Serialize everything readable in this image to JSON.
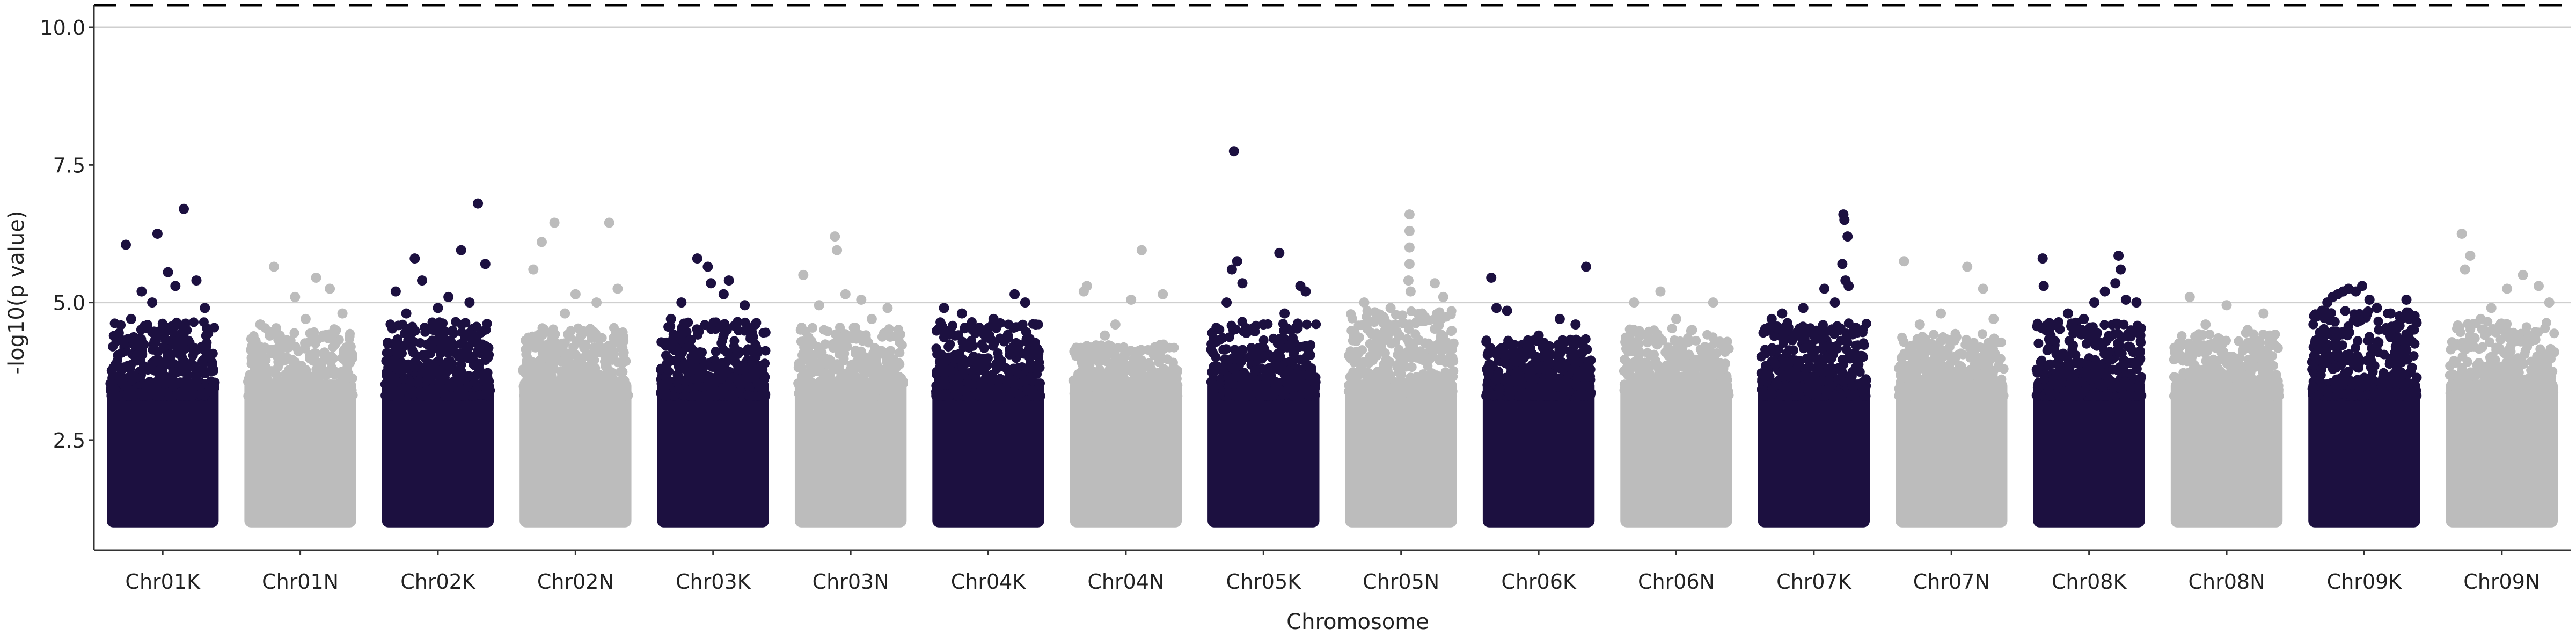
{
  "chart_data": {
    "type": "scatter",
    "title": "",
    "xlabel": "Chromosome",
    "ylabel": "-log10(p value)",
    "ylim": [
      0.5,
      10.4
    ],
    "yticks": [
      2.5,
      5.0,
      7.5,
      10.0
    ],
    "ytick_labels": [
      "2.5",
      "5.0",
      "7.5",
      "10.0"
    ],
    "threshold_lines": [
      {
        "value": 10.4,
        "style": "dashed",
        "color": "#000000"
      },
      {
        "value": 10.0,
        "style": "solid",
        "color": "#cfcfcf"
      },
      {
        "value": 5.0,
        "style": "solid",
        "color": "#cfcfcf"
      }
    ],
    "grid": "horizontal at threshold lines only",
    "legend": "none",
    "colors": {
      "dark": "#1c1040",
      "light": "#bcbcbc"
    },
    "categories": [
      "Chr01K",
      "Chr01N",
      "Chr02K",
      "Chr02N",
      "Chr03K",
      "Chr03N",
      "Chr04K",
      "Chr04N",
      "Chr05K",
      "Chr05N",
      "Chr06K",
      "Chr06N",
      "Chr07K",
      "Chr07N",
      "Chr08K",
      "Chr08N",
      "Chr09K",
      "Chr09N"
    ],
    "chromosomes": [
      {
        "name": "Chr01K",
        "color": "dark",
        "base_max": 4.0,
        "top_hits": [
          {
            "pos": 0.15,
            "y": 6.05
          },
          {
            "pos": 0.45,
            "y": 6.25
          },
          {
            "pos": 0.7,
            "y": 6.7
          },
          {
            "pos": 0.82,
            "y": 5.4
          },
          {
            "pos": 0.3,
            "y": 5.2
          },
          {
            "pos": 0.55,
            "y": 5.55
          },
          {
            "pos": 0.4,
            "y": 5.0
          },
          {
            "pos": 0.9,
            "y": 4.9
          },
          {
            "pos": 0.2,
            "y": 4.7
          },
          {
            "pos": 0.62,
            "y": 5.3
          }
        ]
      },
      {
        "name": "Chr01N",
        "color": "light",
        "base_max": 3.9,
        "top_hits": [
          {
            "pos": 0.25,
            "y": 5.65
          },
          {
            "pos": 0.65,
            "y": 5.45
          },
          {
            "pos": 0.45,
            "y": 5.1
          },
          {
            "pos": 0.78,
            "y": 5.25
          },
          {
            "pos": 0.12,
            "y": 4.6
          },
          {
            "pos": 0.9,
            "y": 4.8
          },
          {
            "pos": 0.55,
            "y": 4.7
          }
        ]
      },
      {
        "name": "Chr02K",
        "color": "dark",
        "base_max": 4.0,
        "top_hits": [
          {
            "pos": 0.28,
            "y": 5.8
          },
          {
            "pos": 0.72,
            "y": 5.95
          },
          {
            "pos": 0.88,
            "y": 6.8
          },
          {
            "pos": 0.95,
            "y": 5.7
          },
          {
            "pos": 0.1,
            "y": 5.2
          },
          {
            "pos": 0.35,
            "y": 5.4
          },
          {
            "pos": 0.6,
            "y": 5.1
          },
          {
            "pos": 0.8,
            "y": 5.0
          },
          {
            "pos": 0.5,
            "y": 4.9
          },
          {
            "pos": 0.2,
            "y": 4.8
          }
        ]
      },
      {
        "name": "Chr02N",
        "color": "light",
        "base_max": 3.9,
        "top_hits": [
          {
            "pos": 0.18,
            "y": 6.1
          },
          {
            "pos": 0.3,
            "y": 6.45
          },
          {
            "pos": 0.82,
            "y": 6.45
          },
          {
            "pos": 0.1,
            "y": 5.6
          },
          {
            "pos": 0.5,
            "y": 5.15
          },
          {
            "pos": 0.7,
            "y": 5.0
          },
          {
            "pos": 0.9,
            "y": 5.25
          },
          {
            "pos": 0.4,
            "y": 4.8
          }
        ]
      },
      {
        "name": "Chr03K",
        "color": "dark",
        "base_max": 4.0,
        "top_hits": [
          {
            "pos": 0.35,
            "y": 5.8
          },
          {
            "pos": 0.45,
            "y": 5.65
          },
          {
            "pos": 0.48,
            "y": 5.35
          },
          {
            "pos": 0.6,
            "y": 5.15
          },
          {
            "pos": 0.2,
            "y": 5.0
          },
          {
            "pos": 0.8,
            "y": 4.95
          },
          {
            "pos": 0.1,
            "y": 4.7
          },
          {
            "pos": 0.65,
            "y": 5.4
          },
          {
            "pos": 0.9,
            "y": 4.6
          }
        ]
      },
      {
        "name": "Chr03N",
        "color": "light",
        "base_max": 3.9,
        "top_hits": [
          {
            "pos": 0.05,
            "y": 5.5
          },
          {
            "pos": 0.35,
            "y": 6.2
          },
          {
            "pos": 0.37,
            "y": 5.95
          },
          {
            "pos": 0.45,
            "y": 5.15
          },
          {
            "pos": 0.2,
            "y": 4.95
          },
          {
            "pos": 0.6,
            "y": 5.05
          },
          {
            "pos": 0.85,
            "y": 4.9
          },
          {
            "pos": 0.7,
            "y": 4.7
          }
        ]
      },
      {
        "name": "Chr04K",
        "color": "dark",
        "base_max": 4.0,
        "top_hits": [
          {
            "pos": 0.08,
            "y": 4.9
          },
          {
            "pos": 0.25,
            "y": 4.8
          },
          {
            "pos": 0.75,
            "y": 5.15
          },
          {
            "pos": 0.85,
            "y": 5.0
          },
          {
            "pos": 0.55,
            "y": 4.7
          },
          {
            "pos": 0.4,
            "y": 4.5
          },
          {
            "pos": 0.95,
            "y": 4.6
          }
        ]
      },
      {
        "name": "Chr04N",
        "color": "light",
        "base_max": 3.6,
        "top_hits": [
          {
            "pos": 0.1,
            "y": 5.2
          },
          {
            "pos": 0.13,
            "y": 5.3
          },
          {
            "pos": 0.65,
            "y": 5.95
          },
          {
            "pos": 0.55,
            "y": 5.05
          },
          {
            "pos": 0.85,
            "y": 5.15
          },
          {
            "pos": 0.4,
            "y": 4.6
          },
          {
            "pos": 0.3,
            "y": 4.4
          }
        ]
      },
      {
        "name": "Chr05K",
        "color": "dark",
        "base_max": 4.0,
        "top_hits": [
          {
            "pos": 0.22,
            "y": 7.75
          },
          {
            "pos": 0.25,
            "y": 5.75
          },
          {
            "pos": 0.65,
            "y": 5.9
          },
          {
            "pos": 0.2,
            "y": 5.6
          },
          {
            "pos": 0.85,
            "y": 5.3
          },
          {
            "pos": 0.9,
            "y": 5.2
          },
          {
            "pos": 0.15,
            "y": 5.0
          },
          {
            "pos": 0.7,
            "y": 4.8
          },
          {
            "pos": 0.5,
            "y": 4.6
          },
          {
            "pos": 0.3,
            "y": 5.35
          }
        ]
      },
      {
        "name": "Chr05N",
        "color": "light",
        "base_max": 4.2,
        "top_hits": [
          {
            "pos": 0.58,
            "y": 6.6
          },
          {
            "pos": 0.58,
            "y": 6.3
          },
          {
            "pos": 0.58,
            "y": 6.0
          },
          {
            "pos": 0.58,
            "y": 5.7
          },
          {
            "pos": 0.57,
            "y": 5.4
          },
          {
            "pos": 0.59,
            "y": 5.2
          },
          {
            "pos": 0.82,
            "y": 5.35
          },
          {
            "pos": 0.15,
            "y": 5.0
          },
          {
            "pos": 0.4,
            "y": 4.9
          },
          {
            "pos": 0.9,
            "y": 5.1
          },
          {
            "pos": 0.7,
            "y": 4.8
          }
        ]
      },
      {
        "name": "Chr06K",
        "color": "dark",
        "base_max": 3.7,
        "top_hits": [
          {
            "pos": 0.05,
            "y": 5.45
          },
          {
            "pos": 0.95,
            "y": 5.65
          },
          {
            "pos": 0.1,
            "y": 4.9
          },
          {
            "pos": 0.2,
            "y": 4.85
          },
          {
            "pos": 0.7,
            "y": 4.7
          },
          {
            "pos": 0.85,
            "y": 4.6
          },
          {
            "pos": 0.5,
            "y": 4.4
          }
        ]
      },
      {
        "name": "Chr06N",
        "color": "light",
        "base_max": 3.9,
        "top_hits": [
          {
            "pos": 0.1,
            "y": 5.0
          },
          {
            "pos": 0.35,
            "y": 5.2
          },
          {
            "pos": 0.85,
            "y": 5.0
          },
          {
            "pos": 0.5,
            "y": 4.7
          },
          {
            "pos": 0.65,
            "y": 4.5
          }
        ]
      },
      {
        "name": "Chr07K",
        "color": "dark",
        "base_max": 4.0,
        "top_hits": [
          {
            "pos": 0.78,
            "y": 6.6
          },
          {
            "pos": 0.79,
            "y": 6.5
          },
          {
            "pos": 0.82,
            "y": 6.2
          },
          {
            "pos": 0.77,
            "y": 5.7
          },
          {
            "pos": 0.8,
            "y": 5.4
          },
          {
            "pos": 0.83,
            "y": 5.3
          },
          {
            "pos": 0.6,
            "y": 5.25
          },
          {
            "pos": 0.4,
            "y": 4.9
          },
          {
            "pos": 0.2,
            "y": 4.8
          },
          {
            "pos": 0.1,
            "y": 4.7
          },
          {
            "pos": 0.7,
            "y": 5.0
          }
        ]
      },
      {
        "name": "Chr07N",
        "color": "light",
        "base_max": 3.8,
        "top_hits": [
          {
            "pos": 0.05,
            "y": 5.75
          },
          {
            "pos": 0.65,
            "y": 5.65
          },
          {
            "pos": 0.8,
            "y": 5.25
          },
          {
            "pos": 0.4,
            "y": 4.8
          },
          {
            "pos": 0.2,
            "y": 4.6
          },
          {
            "pos": 0.9,
            "y": 4.7
          }
        ]
      },
      {
        "name": "Chr08K",
        "color": "dark",
        "base_max": 4.0,
        "top_hits": [
          {
            "pos": 0.06,
            "y": 5.8
          },
          {
            "pos": 0.07,
            "y": 5.3
          },
          {
            "pos": 0.78,
            "y": 5.85
          },
          {
            "pos": 0.8,
            "y": 5.6
          },
          {
            "pos": 0.65,
            "y": 5.2
          },
          {
            "pos": 0.75,
            "y": 5.35
          },
          {
            "pos": 0.55,
            "y": 5.0
          },
          {
            "pos": 0.85,
            "y": 5.05
          },
          {
            "pos": 0.95,
            "y": 5.0
          },
          {
            "pos": 0.3,
            "y": 4.8
          },
          {
            "pos": 0.45,
            "y": 4.7
          }
        ]
      },
      {
        "name": "Chr08N",
        "color": "light",
        "base_max": 3.8,
        "top_hits": [
          {
            "pos": 0.15,
            "y": 5.1
          },
          {
            "pos": 0.5,
            "y": 4.95
          },
          {
            "pos": 0.85,
            "y": 4.8
          },
          {
            "pos": 0.3,
            "y": 4.6
          },
          {
            "pos": 0.7,
            "y": 4.5
          }
        ]
      },
      {
        "name": "Chr09K",
        "color": "dark",
        "base_max": 4.2,
        "top_hits": [
          {
            "pos": 0.1,
            "y": 4.85
          },
          {
            "pos": 0.15,
            "y": 5.0
          },
          {
            "pos": 0.2,
            "y": 5.1
          },
          {
            "pos": 0.25,
            "y": 5.15
          },
          {
            "pos": 0.3,
            "y": 5.2
          },
          {
            "pos": 0.35,
            "y": 5.25
          },
          {
            "pos": 0.42,
            "y": 5.2
          },
          {
            "pos": 0.48,
            "y": 5.3
          },
          {
            "pos": 0.55,
            "y": 5.05
          },
          {
            "pos": 0.62,
            "y": 4.9
          },
          {
            "pos": 0.75,
            "y": 4.8
          },
          {
            "pos": 0.9,
            "y": 5.05
          }
        ]
      },
      {
        "name": "Chr09N",
        "color": "light",
        "base_max": 4.0,
        "top_hits": [
          {
            "pos": 0.12,
            "y": 6.25
          },
          {
            "pos": 0.2,
            "y": 5.85
          },
          {
            "pos": 0.15,
            "y": 5.6
          },
          {
            "pos": 0.55,
            "y": 5.25
          },
          {
            "pos": 0.7,
            "y": 5.5
          },
          {
            "pos": 0.85,
            "y": 5.3
          },
          {
            "pos": 0.95,
            "y": 5.0
          },
          {
            "pos": 0.4,
            "y": 4.9
          },
          {
            "pos": 0.3,
            "y": 4.7
          }
        ]
      }
    ]
  }
}
